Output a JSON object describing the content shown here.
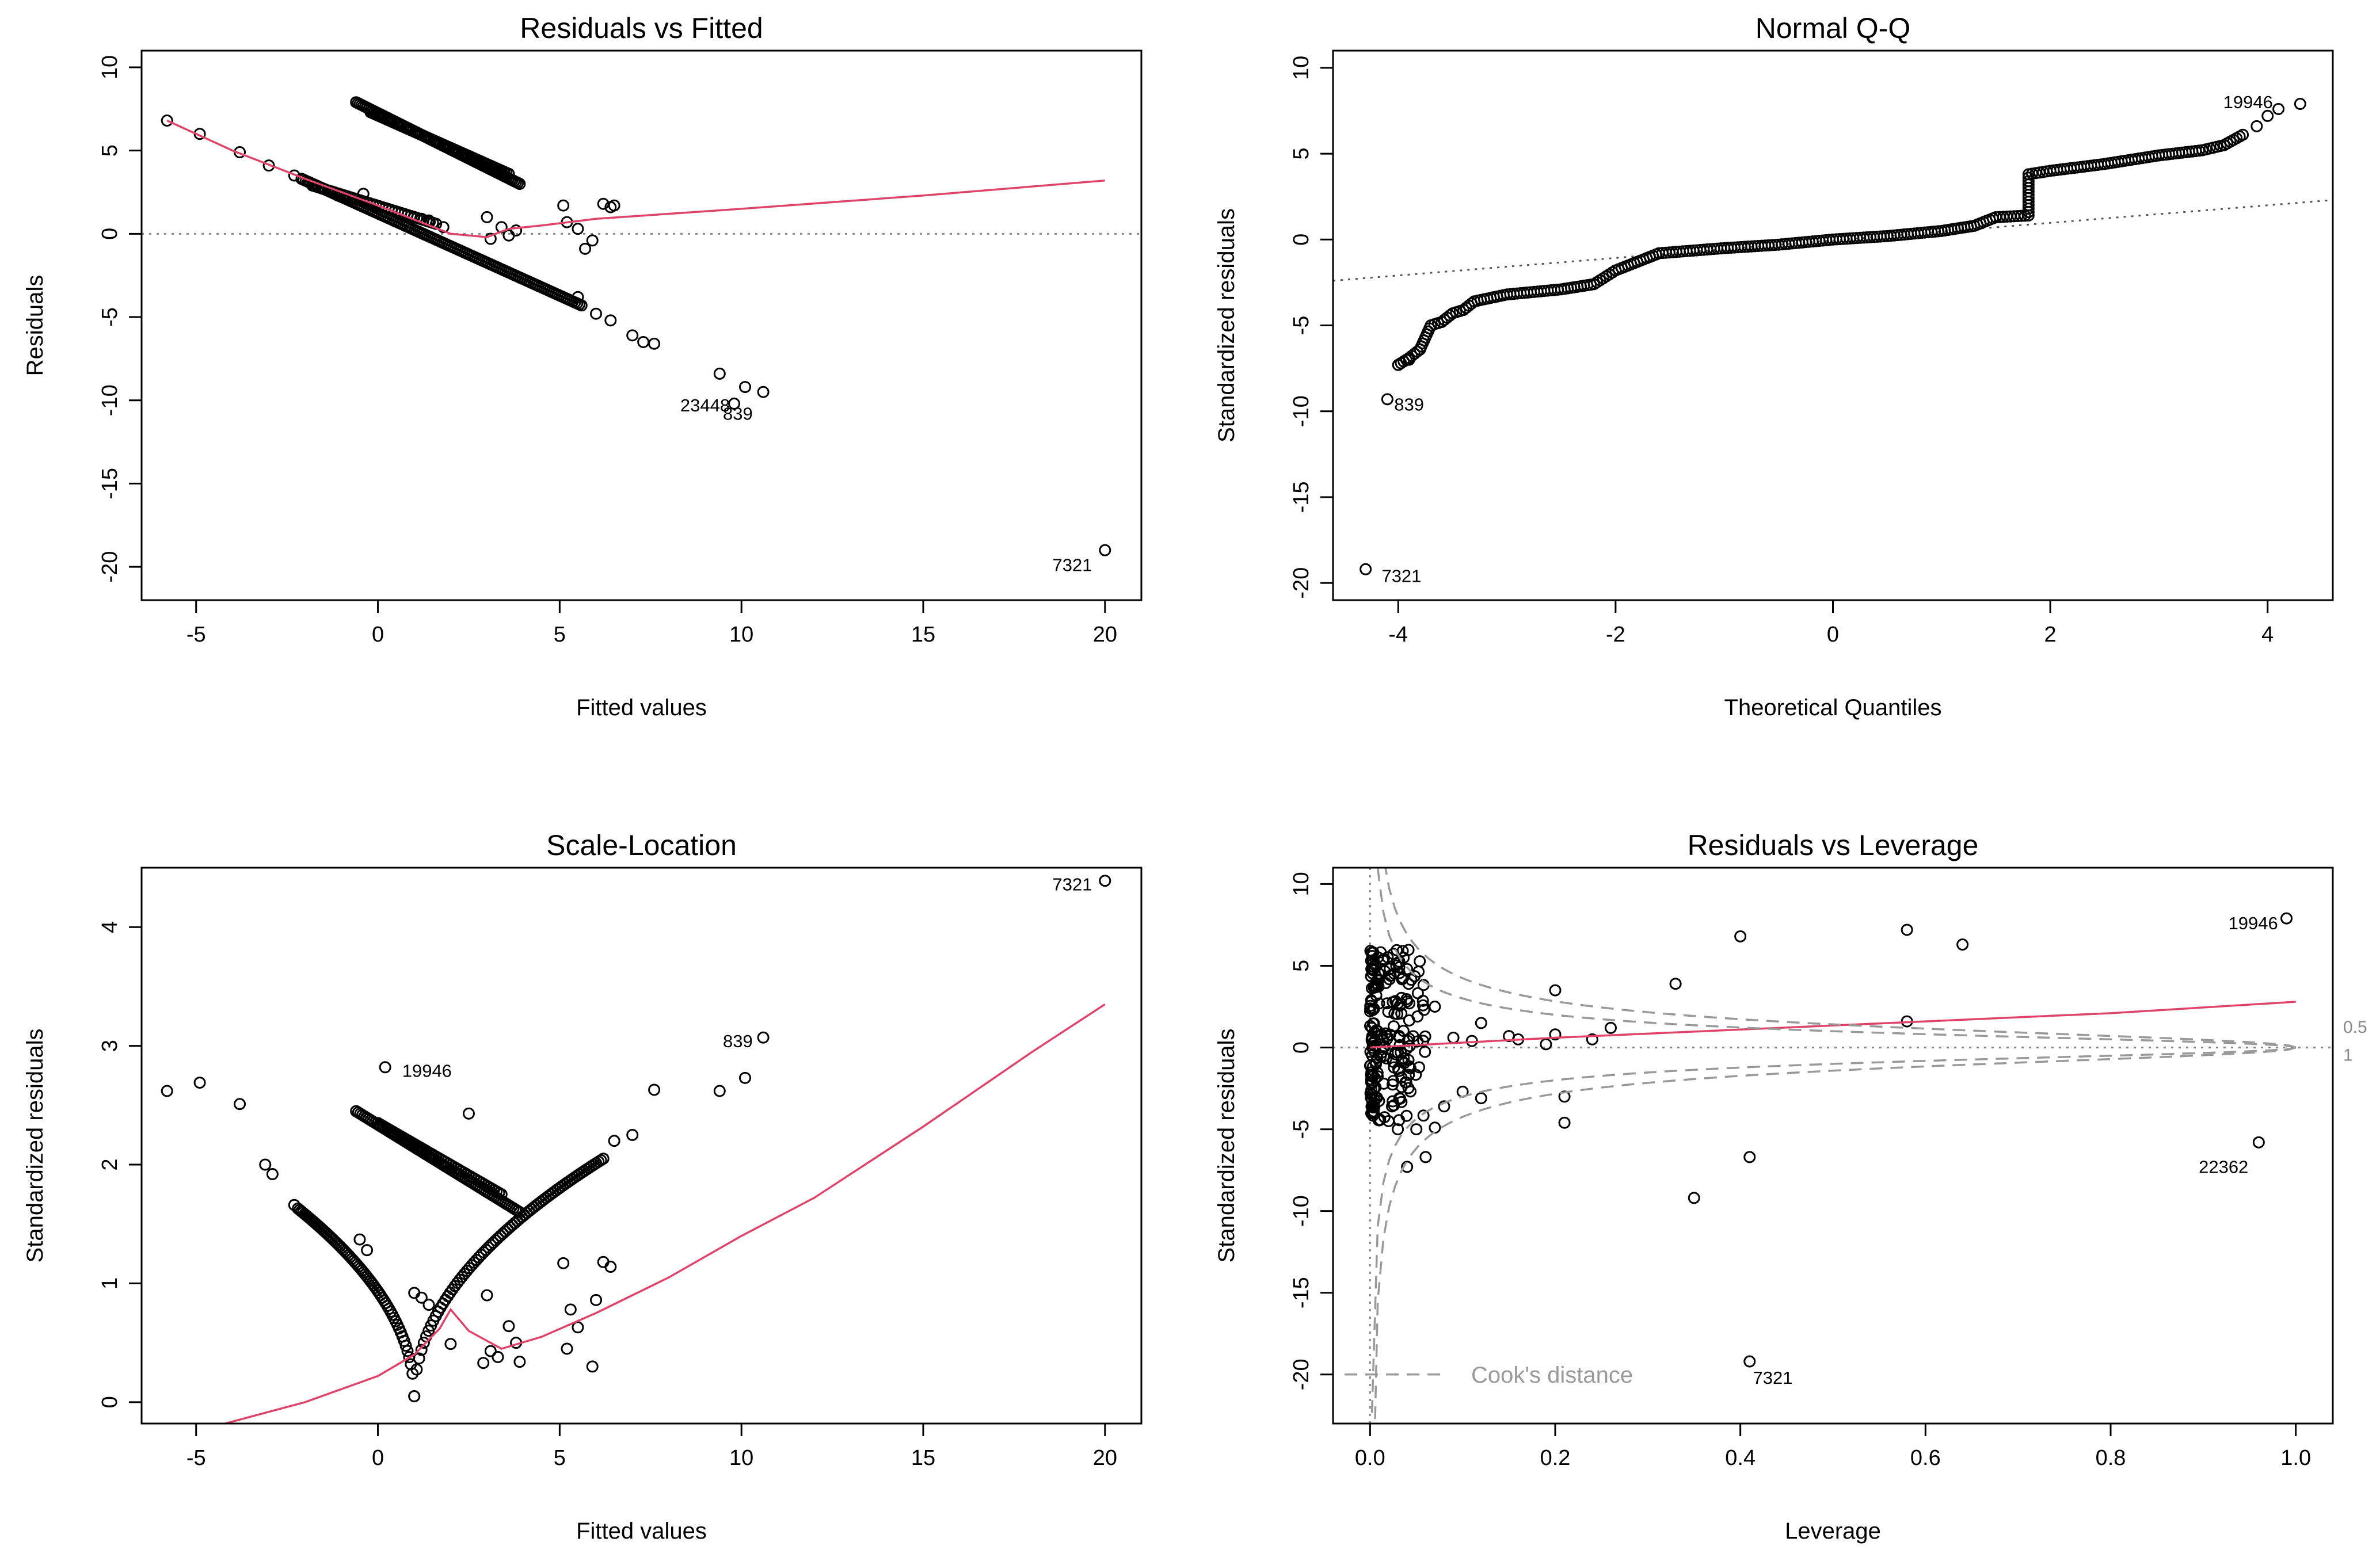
{
  "chart_data": [
    {
      "type": "scatter",
      "title": "Residuals vs Fitted",
      "xlabel": "Fitted values",
      "ylabel": "Residuals",
      "xlim": [
        -6.5,
        21
      ],
      "ylim": [
        -22,
        11
      ],
      "xticks": [
        -5,
        0,
        5,
        10,
        15,
        20
      ],
      "yticks": [
        -20,
        -15,
        -10,
        -5,
        0,
        5,
        10
      ],
      "xtick_labels": [
        "-5",
        "0",
        "5",
        "10",
        "15",
        "20"
      ],
      "ytick_labels": [
        "-20",
        "-15",
        "-10",
        "-5",
        "0",
        "5",
        "10"
      ],
      "reference_line": 0,
      "points": [
        [
          -5.8,
          6.8
        ],
        [
          -4.9,
          6.0
        ],
        [
          -3.8,
          4.9
        ],
        [
          -3.0,
          4.1
        ],
        [
          -2.3,
          3.5
        ],
        [
          -1.9,
          3.1
        ],
        [
          -1.5,
          2.7
        ],
        [
          -1.1,
          2.3
        ],
        [
          -0.4,
          2.4
        ],
        [
          3.0,
          1.0
        ],
        [
          3.4,
          0.4
        ],
        [
          3.8,
          0.2
        ],
        [
          3.1,
          -0.3
        ],
        [
          3.6,
          -0.1
        ],
        [
          5.1,
          1.7
        ],
        [
          5.2,
          0.7
        ],
        [
          5.5,
          0.3
        ],
        [
          5.9,
          -0.4
        ],
        [
          5.7,
          -0.9
        ],
        [
          6.2,
          1.8
        ],
        [
          6.4,
          1.6
        ],
        [
          6.5,
          1.7
        ],
        [
          1.0,
          1.0
        ],
        [
          1.2,
          0.9
        ],
        [
          1.4,
          0.8
        ],
        [
          1.8,
          0.4
        ],
        [
          5.5,
          -3.8
        ],
        [
          6.0,
          -4.8
        ],
        [
          6.4,
          -5.2
        ],
        [
          7.0,
          -6.1
        ],
        [
          7.3,
          -6.5
        ],
        [
          7.6,
          -6.6
        ],
        [
          9.4,
          -8.4
        ],
        [
          10.1,
          -9.2
        ],
        [
          10.6,
          -9.5
        ],
        [
          9.8,
          -10.2
        ],
        [
          20.0,
          -19.0
        ]
      ],
      "bands": [
        {
          "from": [
            -0.6,
            7.9
          ],
          "to": [
            3.9,
            3.0
          ],
          "count": 90
        },
        {
          "from": [
            -0.2,
            7.3
          ],
          "to": [
            3.6,
            3.6
          ],
          "count": 60
        },
        {
          "from": [
            -2.1,
            3.3
          ],
          "to": [
            5.6,
            -4.3
          ],
          "count": 130
        },
        {
          "from": [
            -1.8,
            2.9
          ],
          "to": [
            1.6,
            0.6
          ],
          "count": 40
        }
      ],
      "smooth_line": [
        [
          -5.8,
          6.8
        ],
        [
          -4.0,
          5.0
        ],
        [
          -2.0,
          3.3
        ],
        [
          0.0,
          1.7
        ],
        [
          2.0,
          0.0
        ],
        [
          3.0,
          -0.2
        ],
        [
          3.6,
          0.3
        ],
        [
          4.5,
          0.5
        ],
        [
          6.0,
          0.9
        ],
        [
          10.0,
          1.5
        ],
        [
          15.0,
          2.3
        ],
        [
          20.0,
          3.2
        ]
      ],
      "annotations": [
        {
          "text": "23448",
          "x": 9.0,
          "y": -10.3,
          "anchor": "middle"
        },
        {
          "text": "839",
          "x": 9.9,
          "y": -10.8,
          "anchor": "middle"
        },
        {
          "text": "7321",
          "x": 19.1,
          "y": -19.9,
          "anchor": "middle"
        }
      ]
    },
    {
      "type": "scatter",
      "title": "Normal Q-Q",
      "xlabel": "Theoretical Quantiles",
      "ylabel": "Standardized residuals",
      "xlim": [
        -4.6,
        4.6
      ],
      "ylim": [
        -21,
        11
      ],
      "xticks": [
        -4,
        -2,
        0,
        2,
        4
      ],
      "yticks": [
        -20,
        -15,
        -10,
        -5,
        0,
        5,
        10
      ],
      "xtick_labels": [
        "-4",
        "-2",
        "0",
        "2",
        "4"
      ],
      "ytick_labels": [
        "-20",
        "-15",
        "-10",
        "-5",
        "0",
        "5",
        "10"
      ],
      "qq_line": [
        [
          -4.6,
          -2.4
        ],
        [
          4.6,
          2.3
        ]
      ],
      "curve": [
        [
          -4.0,
          -7.3
        ],
        [
          -3.9,
          -6.9
        ],
        [
          -3.8,
          -6.4
        ],
        [
          -3.7,
          -5.0
        ],
        [
          -3.6,
          -4.8
        ],
        [
          -3.5,
          -4.3
        ],
        [
          -3.4,
          -4.1
        ],
        [
          -3.3,
          -3.6
        ],
        [
          -3.0,
          -3.2
        ],
        [
          -2.5,
          -2.9
        ],
        [
          -2.2,
          -2.6
        ],
        [
          -2.0,
          -1.8
        ],
        [
          -1.6,
          -0.8
        ],
        [
          -1.0,
          -0.5
        ],
        [
          -0.5,
          -0.3
        ],
        [
          0.0,
          0.0
        ],
        [
          0.5,
          0.2
        ],
        [
          1.0,
          0.5
        ],
        [
          1.3,
          0.8
        ],
        [
          1.5,
          1.3
        ],
        [
          1.8,
          1.4
        ],
        [
          1.8,
          3.8
        ],
        [
          2.0,
          4.0
        ],
        [
          2.5,
          4.4
        ],
        [
          3.0,
          4.9
        ],
        [
          3.4,
          5.2
        ],
        [
          3.6,
          5.5
        ],
        [
          3.8,
          6.2
        ]
      ],
      "points": [
        [
          -4.0,
          -7.3
        ],
        [
          -3.9,
          -7.0
        ],
        [
          -3.8,
          -6.4
        ],
        [
          3.9,
          6.6
        ],
        [
          4.0,
          7.2
        ],
        [
          4.1,
          7.6
        ],
        [
          4.3,
          7.9
        ],
        [
          -4.1,
          -9.3
        ],
        [
          -4.3,
          -19.2
        ]
      ],
      "annotations": [
        {
          "text": "19946",
          "x": 3.82,
          "y": 8.0,
          "anchor": "middle"
        },
        {
          "text": "839",
          "x": -3.9,
          "y": -9.6,
          "anchor": "middle"
        },
        {
          "text": "7321",
          "x": -3.97,
          "y": -19.6,
          "anchor": "middle"
        }
      ]
    },
    {
      "type": "scatter",
      "title": "Scale-Location",
      "xlabel": "Fitted values",
      "ylabel": "Standardized residuals",
      "xlim": [
        -6.5,
        21
      ],
      "ylim": [
        -0.18,
        4.5
      ],
      "xticks": [
        -5,
        0,
        5,
        10,
        15,
        20
      ],
      "yticks": [
        0,
        1,
        2,
        3,
        4
      ],
      "xtick_labels": [
        "-5",
        "0",
        "5",
        "10",
        "15",
        "20"
      ],
      "ytick_labels": [
        "0",
        "1",
        "2",
        "3",
        "4"
      ],
      "points": [
        [
          -5.8,
          2.62
        ],
        [
          -4.9,
          2.69
        ],
        [
          -3.8,
          2.51
        ],
        [
          -3.1,
          2.0
        ],
        [
          -2.9,
          1.92
        ],
        [
          -2.3,
          1.66
        ],
        [
          -0.5,
          1.37
        ],
        [
          -0.3,
          1.28
        ],
        [
          2.5,
          2.43
        ],
        [
          0.2,
          2.82
        ],
        [
          1.0,
          0.92
        ],
        [
          1.2,
          0.88
        ],
        [
          1.4,
          0.82
        ],
        [
          2.0,
          0.49
        ],
        [
          2.9,
          0.33
        ],
        [
          3.0,
          0.9
        ],
        [
          3.1,
          0.43
        ],
        [
          3.3,
          0.38
        ],
        [
          3.6,
          0.64
        ],
        [
          3.8,
          0.5
        ],
        [
          3.9,
          0.34
        ],
        [
          5.1,
          1.17
        ],
        [
          5.2,
          0.45
        ],
        [
          5.3,
          0.78
        ],
        [
          5.5,
          0.63
        ],
        [
          5.9,
          0.3
        ],
        [
          6.0,
          0.86
        ],
        [
          6.2,
          1.18
        ],
        [
          6.4,
          1.14
        ],
        [
          6.5,
          2.2
        ],
        [
          7.0,
          2.25
        ],
        [
          7.6,
          2.63
        ],
        [
          9.4,
          2.62
        ],
        [
          10.1,
          2.73
        ],
        [
          10.6,
          3.07
        ],
        [
          20.0,
          4.39
        ]
      ],
      "bands": [
        {
          "from": [
            -0.6,
            2.45
          ],
          "to": [
            3.9,
            1.6
          ],
          "count": 80
        },
        {
          "from": [
            0.0,
            2.35
          ],
          "to": [
            3.4,
            1.75
          ],
          "count": 50
        },
        {
          "from": [
            1.0,
            0.05
          ],
          "to": [
            6.2,
            2.05
          ],
          "count": 80,
          "curve": "sqrt"
        },
        {
          "from": [
            1.0,
            0.05
          ],
          "to": [
            -2.2,
            1.63
          ],
          "count": 70,
          "curve": "sqrt"
        }
      ],
      "smooth_line": [
        [
          -4.2,
          -0.18
        ],
        [
          -2.0,
          0.0
        ],
        [
          0.0,
          0.22
        ],
        [
          1.0,
          0.4
        ],
        [
          1.7,
          0.62
        ],
        [
          2.0,
          0.78
        ],
        [
          2.5,
          0.6
        ],
        [
          3.4,
          0.45
        ],
        [
          4.5,
          0.55
        ],
        [
          6.0,
          0.75
        ],
        [
          8.0,
          1.05
        ],
        [
          10.0,
          1.4
        ],
        [
          12.0,
          1.72
        ],
        [
          15.0,
          2.32
        ],
        [
          18.0,
          2.95
        ],
        [
          20.0,
          3.35
        ]
      ],
      "annotations": [
        {
          "text": "19946",
          "x": 1.35,
          "y": 2.79,
          "anchor": "middle"
        },
        {
          "text": "839",
          "x": 9.9,
          "y": 3.04,
          "anchor": "middle"
        },
        {
          "text": "7321",
          "x": 19.1,
          "y": 4.36,
          "anchor": "middle"
        }
      ]
    },
    {
      "type": "scatter",
      "title": "Residuals vs Leverage",
      "xlabel": "Leverage",
      "ylabel": "Standardized residuals",
      "xlim": [
        -0.04,
        1.04
      ],
      "ylim": [
        -23,
        11
      ],
      "xticks": [
        0.0,
        0.2,
        0.4,
        0.6,
        0.8,
        1.0
      ],
      "yticks": [
        -20,
        -15,
        -10,
        -5,
        0,
        5,
        10
      ],
      "xtick_labels": [
        "0.0",
        "0.2",
        "0.4",
        "0.6",
        "0.8",
        "1.0"
      ],
      "ytick_labels": [
        "-20",
        "-15",
        "-10",
        "-5",
        "0",
        "5",
        "10"
      ],
      "reference_line": 0,
      "cluster": {
        "x_range": [
          0.0,
          0.06
        ],
        "y_range": [
          -4.5,
          6.0
        ],
        "count": 170
      },
      "points": [
        [
          0.04,
          4.8
        ],
        [
          0.07,
          2.5
        ],
        [
          0.09,
          0.6
        ],
        [
          0.11,
          0.4
        ],
        [
          0.12,
          1.5
        ],
        [
          0.1,
          -2.7
        ],
        [
          0.12,
          -3.1
        ],
        [
          0.15,
          0.7
        ],
        [
          0.16,
          0.5
        ],
        [
          0.19,
          0.2
        ],
        [
          0.2,
          0.8
        ],
        [
          0.2,
          3.5
        ],
        [
          0.21,
          -4.6
        ],
        [
          0.21,
          -3.0
        ],
        [
          0.24,
          0.5
        ],
        [
          0.26,
          1.2
        ],
        [
          0.33,
          3.9
        ],
        [
          0.35,
          -9.2
        ],
        [
          0.4,
          6.8
        ],
        [
          0.41,
          -6.7
        ],
        [
          0.58,
          7.2
        ],
        [
          0.58,
          1.6
        ],
        [
          0.64,
          6.3
        ],
        [
          0.96,
          -5.8
        ],
        [
          0.99,
          7.9
        ],
        [
          0.41,
          -19.2
        ],
        [
          0.04,
          -7.3
        ],
        [
          0.06,
          -6.7
        ],
        [
          0.07,
          -4.9
        ],
        [
          0.05,
          -5.0
        ],
        [
          0.03,
          -5.0
        ],
        [
          0.02,
          -4.5
        ],
        [
          0.08,
          -3.6
        ]
      ],
      "smooth_line": [
        [
          0.0,
          0.0
        ],
        [
          0.1,
          0.3
        ],
        [
          0.2,
          0.6
        ],
        [
          0.4,
          1.1
        ],
        [
          0.6,
          1.6
        ],
        [
          0.8,
          2.1
        ],
        [
          1.0,
          2.8
        ]
      ],
      "cook_distance": [
        0.5,
        1
      ],
      "cook_labels": [
        "0.5",
        "1"
      ],
      "legend": "Cook's distance",
      "annotations": [
        {
          "text": "19946",
          "x": 0.954,
          "y": 7.6,
          "anchor": "middle"
        },
        {
          "text": "22362",
          "x": 0.922,
          "y": -7.3,
          "anchor": "middle"
        },
        {
          "text": "7321",
          "x": 0.435,
          "y": -20.2,
          "anchor": "middle"
        }
      ]
    }
  ]
}
